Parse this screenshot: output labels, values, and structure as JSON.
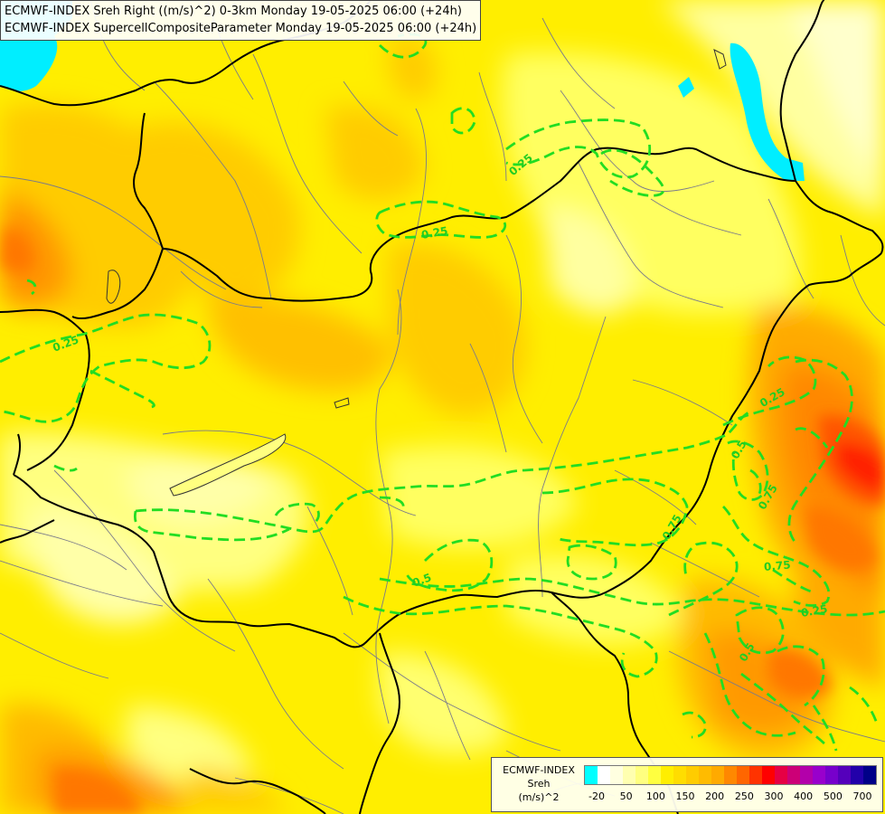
{
  "title": {
    "line1": "ECMWF-INDEX Sreh Right ((m/s)^2) 0-3km Monday 19-05-2025 06:00 (+24h)",
    "line2": "ECMWF-INDEX SupercellCompositeParameter Monday 19-05-2025 06:00 (+24h)"
  },
  "legend": {
    "line1": "ECMWF-INDEX",
    "line2": "Sreh",
    "line3": "(m/s)^2",
    "colors": [
      "#00ffff",
      "#ffffff",
      "#ffffe0",
      "#ffffb0",
      "#ffff80",
      "#ffff40",
      "#ffee00",
      "#ffdd00",
      "#ffcc00",
      "#ffbb00",
      "#ffaa00",
      "#ff8800",
      "#ff6600",
      "#ff3300",
      "#ff0000",
      "#e60044",
      "#cc0077",
      "#b300aa",
      "#9900cc",
      "#7700cc",
      "#5500bb",
      "#2200aa",
      "#000088"
    ],
    "tick_labels": [
      "-20",
      "50",
      "100",
      "150",
      "200",
      "250",
      "300",
      "400",
      "500",
      "700"
    ]
  },
  "contour_labels": [
    {
      "text": "0.25",
      "angle": -40
    },
    {
      "text": "0.25",
      "angle": -10
    },
    {
      "text": "0.25",
      "angle": -20
    },
    {
      "text": "0.25",
      "angle": -30
    },
    {
      "text": "0.5",
      "angle": -60
    },
    {
      "text": "0.75",
      "angle": -60
    },
    {
      "text": "0.5",
      "angle": -20
    },
    {
      "text": "0.75",
      "angle": -5
    },
    {
      "text": "0.25",
      "angle": -10
    },
    {
      "text": "0.5",
      "angle": -60
    }
  ]
}
